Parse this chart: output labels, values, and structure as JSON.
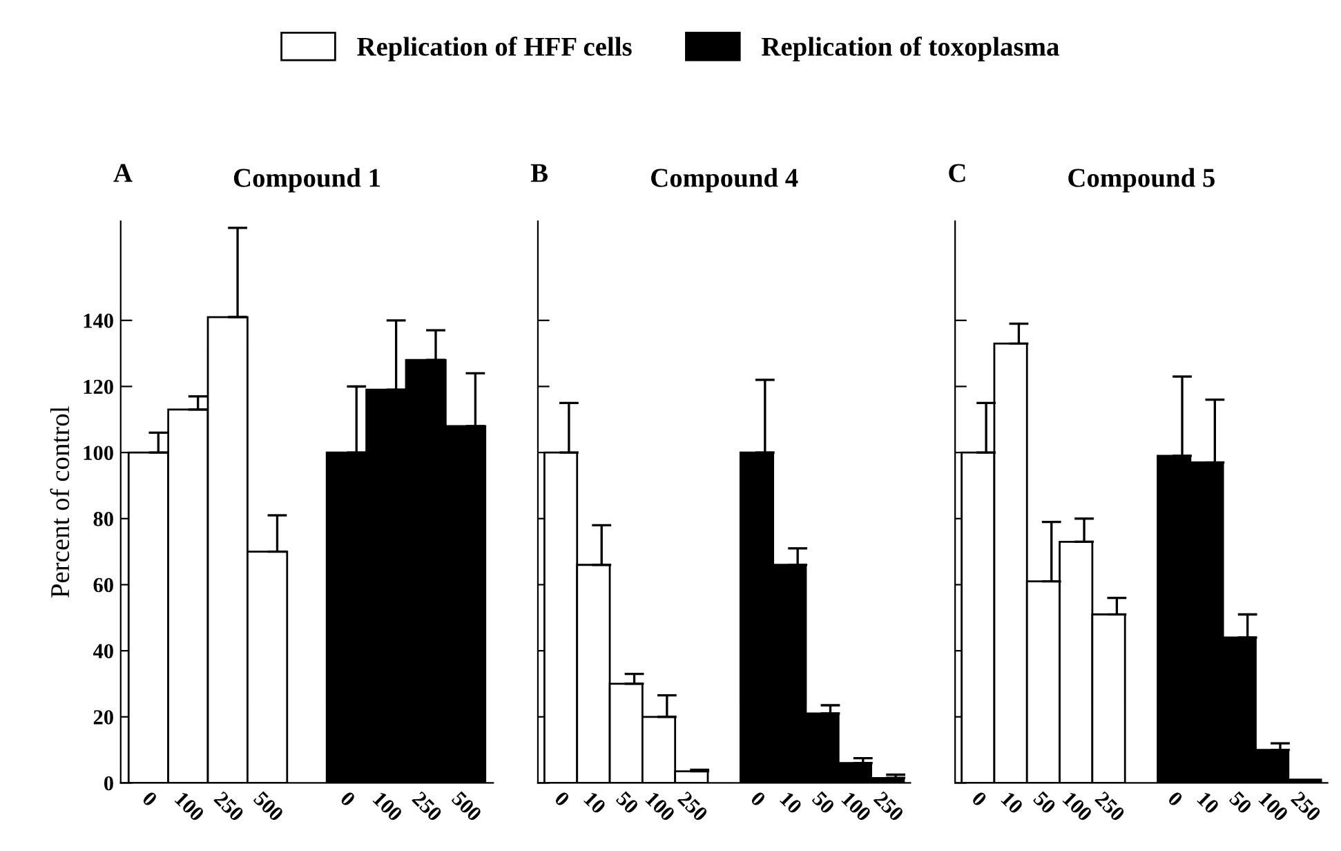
{
  "chart_data": [
    {
      "type": "bar",
      "title": "Compound 1",
      "ylabel": "Percent of control",
      "annotations": [
        "A"
      ],
      "legend": "top",
      "categories": [
        "0",
        "100",
        "250",
        "500",
        null,
        "0",
        "100",
        "250",
        "500"
      ],
      "series": [
        {
          "name": "Replication of HFF cells",
          "color": "#ffffff",
          "values": [
            100,
            113,
            141,
            70,
            null,
            null,
            null,
            null,
            null
          ],
          "errors": [
            [
              100,
              106
            ],
            [
              113,
              117
            ],
            [
              141,
              168
            ],
            [
              70,
              81
            ],
            null,
            null,
            null,
            null,
            null
          ]
        },
        {
          "name": "Replication of toxoplasma",
          "color": "#000000",
          "values": [
            null,
            null,
            null,
            null,
            null,
            100,
            119,
            128,
            108
          ],
          "errors": [
            null,
            null,
            null,
            null,
            null,
            [
              100,
              120
            ],
            [
              119,
              140
            ],
            [
              128,
              137
            ],
            [
              108,
              124
            ]
          ]
        }
      ],
      "ylim": [
        0,
        170
      ],
      "yticks": [
        0,
        20,
        40,
        60,
        80,
        100,
        120,
        140
      ]
    },
    {
      "type": "bar",
      "title": "Compound 4",
      "annotations": [
        "B"
      ],
      "tick_labels": "x",
      "categories": [
        "0",
        "10",
        "50",
        "100",
        "250",
        null,
        "0",
        "10",
        "50",
        "100",
        "250"
      ],
      "series": [
        {
          "color": "#ffffff",
          "values": [
            100,
            66,
            30,
            20,
            3.5,
            null,
            null,
            null,
            null,
            null,
            null
          ],
          "errors": [
            [
              100,
              115
            ],
            [
              66,
              78
            ],
            [
              30,
              33
            ],
            [
              20,
              26.5
            ],
            [
              3.5,
              4
            ],
            null,
            null,
            null,
            null,
            null,
            null
          ]
        },
        {
          "color": "#000000",
          "values": [
            null,
            null,
            null,
            null,
            null,
            null,
            100,
            66,
            21,
            6,
            1.5
          ],
          "errors": [
            null,
            null,
            null,
            null,
            null,
            null,
            [
              100,
              122
            ],
            [
              66,
              71
            ],
            [
              21,
              23.5
            ],
            [
              6,
              7.5
            ],
            [
              1.5,
              2.5
            ]
          ]
        }
      ],
      "ylim": [
        0,
        170
      ],
      "yticks": [
        {
          "value": 0,
          "label": null
        },
        {
          "value": 20,
          "label": null
        },
        {
          "value": 40,
          "label": null
        },
        {
          "value": 60,
          "label": null
        },
        {
          "value": 80,
          "label": null
        },
        {
          "value": 100,
          "label": null
        },
        {
          "value": 120,
          "label": null
        },
        {
          "value": 140,
          "label": null
        }
      ]
    },
    {
      "type": "bar",
      "title": "Compound 5",
      "annotations": [
        "C"
      ],
      "tick_labels": "x",
      "categories": [
        "0",
        "10",
        "50",
        "100",
        "250",
        null,
        "0",
        "10",
        "50",
        "100",
        "250"
      ],
      "series": [
        {
          "color": "#ffffff",
          "values": [
            100,
            133,
            61,
            73,
            51,
            null,
            null,
            null,
            null,
            null,
            null
          ],
          "errors": [
            [
              100,
              115
            ],
            [
              133,
              139
            ],
            [
              61,
              79
            ],
            [
              73,
              80
            ],
            [
              51,
              56
            ],
            null,
            null,
            null,
            null,
            null,
            null
          ]
        },
        {
          "color": "#000000",
          "values": [
            null,
            null,
            null,
            null,
            null,
            null,
            99,
            97,
            44,
            10,
            1
          ],
          "errors": [
            null,
            null,
            null,
            null,
            null,
            null,
            [
              99,
              123
            ],
            [
              97,
              116
            ],
            [
              44,
              51
            ],
            [
              10,
              12
            ],
            null
          ]
        }
      ],
      "ylim": [
        0,
        170
      ],
      "yticks": [
        {
          "value": 0,
          "label": null
        },
        {
          "value": 20,
          "label": null
        },
        {
          "value": 40,
          "label": null
        },
        {
          "value": 60,
          "label": null
        },
        {
          "value": 80,
          "label": null
        },
        {
          "value": 100,
          "label": null
        },
        {
          "value": 120,
          "label": null
        },
        {
          "value": 140,
          "label": null
        }
      ]
    }
  ]
}
